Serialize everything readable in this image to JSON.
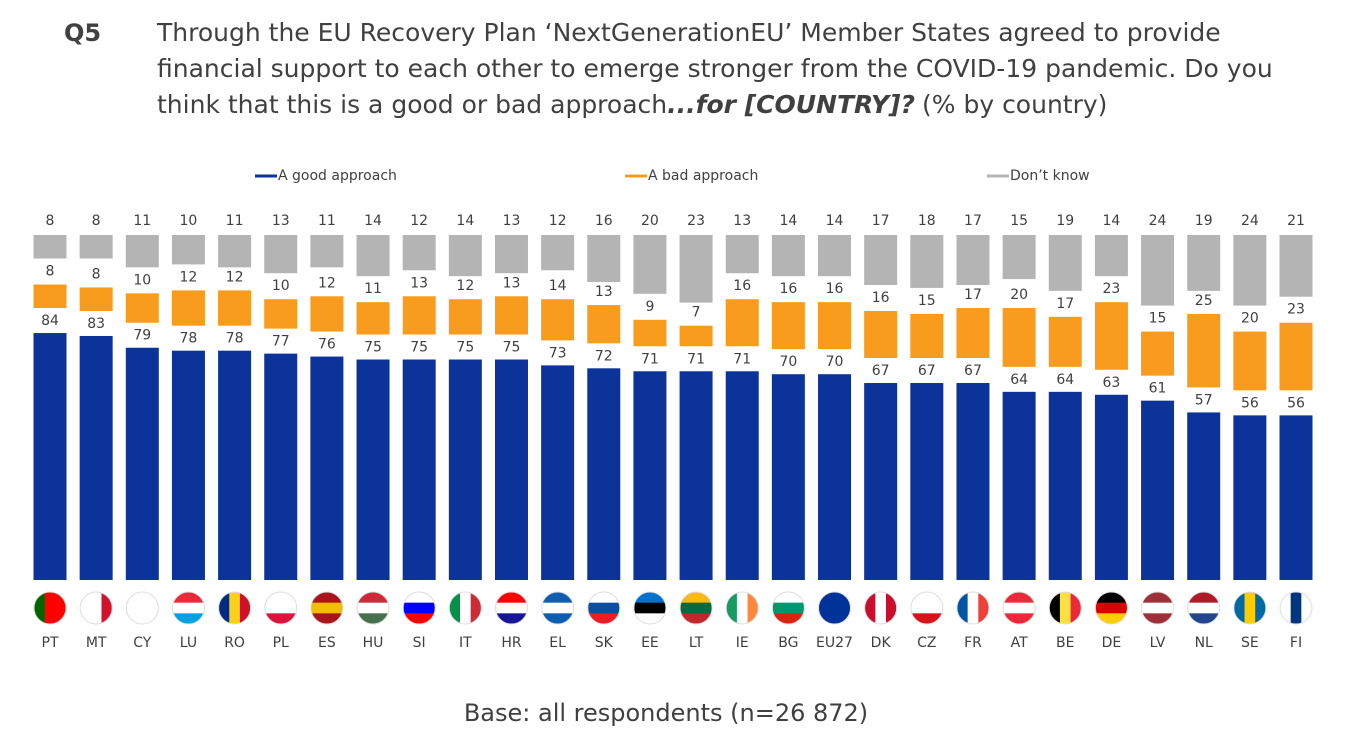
{
  "chart_data": {
    "type": "stacked-bar",
    "label": "Q5",
    "title": [
      "Through the EU Recovery Plan ‘NextGenerationEU’ Member States agreed to provide",
      "financial support to each other to emerge stronger from the COVID-19 pandemic. Do you",
      "think that this is a good or bad approach"
    ],
    "title_emphasis": "...for [COUNTRY]?",
    "title_suffix": "(% by country)",
    "categories": [
      "PT",
      "MT",
      "CY",
      "LU",
      "RO",
      "PL",
      "ES",
      "HU",
      "SI",
      "IT",
      "HR",
      "EL",
      "SK",
      "EE",
      "LT",
      "IE",
      "BG",
      "EU27",
      "DK",
      "CZ",
      "FR",
      "AT",
      "BE",
      "DE",
      "LV",
      "NL",
      "SE",
      "FI"
    ],
    "series": [
      {
        "name": "A good approach",
        "color": "#0c3399",
        "values": [
          84,
          83,
          79,
          78,
          78,
          77,
          76,
          75,
          75,
          75,
          75,
          73,
          72,
          71,
          71,
          71,
          70,
          70,
          67,
          67,
          67,
          64,
          64,
          63,
          61,
          57,
          56,
          56
        ]
      },
      {
        "name": "A bad approach",
        "color": "#f99b1c",
        "values": [
          8,
          8,
          10,
          12,
          12,
          10,
          12,
          11,
          13,
          12,
          13,
          14,
          13,
          9,
          7,
          16,
          16,
          16,
          16,
          15,
          17,
          20,
          17,
          23,
          15,
          25,
          20,
          23
        ]
      },
      {
        "name": "Don’t know",
        "color": "#b4b4b4",
        "values": [
          8,
          8,
          11,
          10,
          11,
          13,
          11,
          14,
          12,
          14,
          13,
          12,
          16,
          20,
          23,
          13,
          14,
          14,
          17,
          18,
          17,
          15,
          19,
          14,
          24,
          19,
          24,
          21
        ]
      }
    ],
    "footnote": "Base: all respondents (n=26 872)"
  }
}
